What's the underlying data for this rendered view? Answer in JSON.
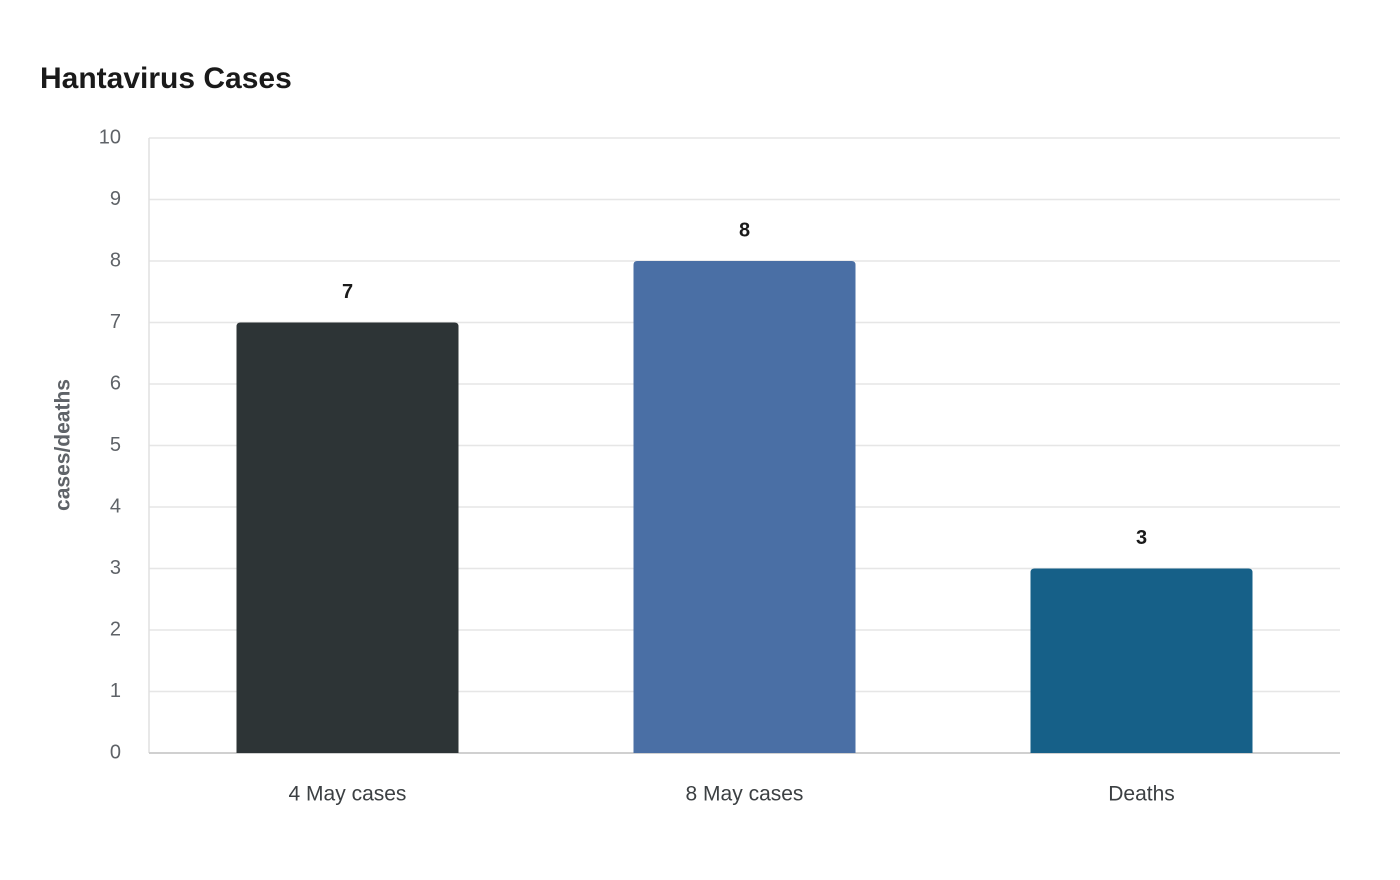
{
  "chart_data": {
    "type": "bar",
    "title": "Hantavirus Cases",
    "y_label": "cases/deaths",
    "categories": [
      "4 May cases",
      "8 May cases",
      "Deaths"
    ],
    "values": [
      7,
      8,
      3
    ],
    "colors": [
      "#2d3436",
      "#4a6fa5",
      "#166088"
    ],
    "ylim": [
      0,
      10
    ],
    "yticks": [
      0,
      1,
      2,
      3,
      4,
      5,
      6,
      7,
      8,
      9,
      10
    ],
    "grid": true
  }
}
